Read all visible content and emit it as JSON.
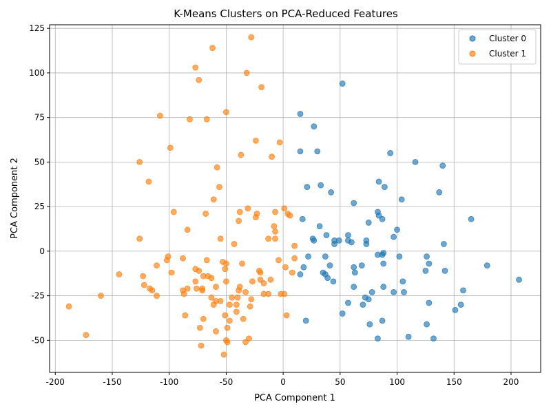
{
  "chart_data": {
    "type": "scatter",
    "title": "K-Means Clusters on PCA-Reduced Features",
    "xlabel": "PCA Component 1",
    "ylabel": "PCA Component 2",
    "xlim": [
      -205,
      226
    ],
    "ylim": [
      -68,
      127
    ],
    "xticks": [
      -200,
      -150,
      -100,
      -50,
      0,
      50,
      100,
      150,
      200
    ],
    "yticks": [
      -50,
      -25,
      0,
      25,
      50,
      75,
      100,
      125
    ],
    "grid": true,
    "legend": "top-right",
    "series": [
      {
        "name": "Cluster 0",
        "color": "#1f77b4",
        "points": [
          [
            52,
            94
          ],
          [
            15,
            77
          ],
          [
            27,
            70
          ],
          [
            15,
            56
          ],
          [
            30,
            56
          ],
          [
            94,
            55
          ],
          [
            116,
            50
          ],
          [
            140,
            48
          ],
          [
            84,
            39
          ],
          [
            89,
            36
          ],
          [
            21,
            36
          ],
          [
            33,
            37
          ],
          [
            42,
            33
          ],
          [
            137,
            33
          ],
          [
            104,
            29
          ],
          [
            62,
            27
          ],
          [
            83,
            22
          ],
          [
            84,
            20
          ],
          [
            87,
            18
          ],
          [
            165,
            18
          ],
          [
            17,
            18
          ],
          [
            75,
            16
          ],
          [
            32,
            14
          ],
          [
            100,
            12
          ],
          [
            38,
            9
          ],
          [
            57,
            9
          ],
          [
            97,
            8
          ],
          [
            26,
            7
          ],
          [
            27,
            6
          ],
          [
            45,
            6
          ],
          [
            49,
            6
          ],
          [
            73,
            6
          ],
          [
            57,
            6
          ],
          [
            60,
            5
          ],
          [
            45,
            4
          ],
          [
            73,
            4
          ],
          [
            141,
            4
          ],
          [
            88,
            -1
          ],
          [
            87,
            -2
          ],
          [
            83,
            -2
          ],
          [
            22,
            -3
          ],
          [
            37,
            -3
          ],
          [
            102,
            -3
          ],
          [
            126,
            -3
          ],
          [
            128,
            -7
          ],
          [
            88,
            -7
          ],
          [
            69,
            -8
          ],
          [
            41,
            -8
          ],
          [
            179,
            -8
          ],
          [
            62,
            -9
          ],
          [
            18,
            -9
          ],
          [
            125,
            -11
          ],
          [
            142,
            -11
          ],
          [
            63,
            -12
          ],
          [
            35,
            -12
          ],
          [
            15,
            -13
          ],
          [
            37,
            -13
          ],
          [
            39,
            -15
          ],
          [
            207,
            -16
          ],
          [
            105,
            -17
          ],
          [
            44,
            -17
          ],
          [
            62,
            -20
          ],
          [
            88,
            -20
          ],
          [
            158,
            -22
          ],
          [
            78,
            -23
          ],
          [
            97,
            -23
          ],
          [
            106,
            -23
          ],
          [
            72,
            -26
          ],
          [
            75,
            -27
          ],
          [
            128,
            -29
          ],
          [
            57,
            -29
          ],
          [
            156,
            -30
          ],
          [
            70,
            -30
          ],
          [
            151,
            -33
          ],
          [
            52,
            -35
          ],
          [
            20,
            -39
          ],
          [
            87,
            -39
          ],
          [
            76,
            -41
          ],
          [
            126,
            -41
          ],
          [
            110,
            -48
          ],
          [
            83,
            -49
          ],
          [
            132,
            -49
          ]
        ]
      },
      {
        "name": "Cluster 1",
        "color": "#ff7f0e",
        "points": [
          [
            -28,
            120
          ],
          [
            -62,
            114
          ],
          [
            -77,
            103
          ],
          [
            -32,
            100
          ],
          [
            -74,
            96
          ],
          [
            -19,
            92
          ],
          [
            -50,
            78
          ],
          [
            -108,
            76
          ],
          [
            -82,
            74
          ],
          [
            -67,
            74
          ],
          [
            -24,
            62
          ],
          [
            -3,
            61
          ],
          [
            -99,
            58
          ],
          [
            -37,
            54
          ],
          [
            -10,
            53
          ],
          [
            -126,
            50
          ],
          [
            -58,
            47
          ],
          [
            -118,
            39
          ],
          [
            -56,
            36
          ],
          [
            -61,
            29
          ],
          [
            1,
            24
          ],
          [
            -31,
            24
          ],
          [
            -96,
            22
          ],
          [
            -38,
            22
          ],
          [
            -23,
            21
          ],
          [
            -7,
            22
          ],
          [
            4,
            21
          ],
          [
            -68,
            21
          ],
          [
            6,
            20
          ],
          [
            -24,
            19
          ],
          [
            -39,
            17
          ],
          [
            -84,
            12
          ],
          [
            -8,
            14
          ],
          [
            -7,
            11
          ],
          [
            -126,
            7
          ],
          [
            -55,
            7
          ],
          [
            -7,
            7
          ],
          [
            -13,
            7
          ],
          [
            -43,
            4
          ],
          [
            10,
            3
          ],
          [
            -101,
            -3
          ],
          [
            -102,
            -5
          ],
          [
            -88,
            -4
          ],
          [
            -67,
            -5
          ],
          [
            -4,
            -5
          ],
          [
            10,
            -4
          ],
          [
            -53,
            -6
          ],
          [
            -36,
            -7
          ],
          [
            -50,
            -7
          ],
          [
            -111,
            -8
          ],
          [
            -77,
            -10
          ],
          [
            -51,
            -10
          ],
          [
            2,
            -9
          ],
          [
            -74,
            -11
          ],
          [
            -98,
            -12
          ],
          [
            -21,
            -11
          ],
          [
            -20,
            -12
          ],
          [
            8,
            -12
          ],
          [
            -144,
            -13
          ],
          [
            -70,
            -14
          ],
          [
            -66,
            -14
          ],
          [
            -123,
            -14
          ],
          [
            -63,
            -15
          ],
          [
            -11,
            -16
          ],
          [
            -20,
            -16
          ],
          [
            -27,
            -17
          ],
          [
            -50,
            -17
          ],
          [
            -77,
            -17
          ],
          [
            -17,
            -18
          ],
          [
            -122,
            -19
          ],
          [
            -59,
            -20
          ],
          [
            -38,
            -20
          ],
          [
            -84,
            -21
          ],
          [
            -76,
            -21
          ],
          [
            -117,
            -21
          ],
          [
            -115,
            -22
          ],
          [
            -71,
            -21
          ],
          [
            -88,
            -22
          ],
          [
            -39,
            -22
          ],
          [
            -71,
            -22
          ],
          [
            -33,
            -23
          ],
          [
            -87,
            -24
          ],
          [
            -13,
            -24
          ],
          [
            -17,
            -24
          ],
          [
            -2,
            -24
          ],
          [
            1,
            -24
          ],
          [
            -111,
            -25
          ],
          [
            -160,
            -25
          ],
          [
            -45,
            -26
          ],
          [
            -40,
            -26
          ],
          [
            -63,
            -26
          ],
          [
            -28,
            -27
          ],
          [
            -55,
            -28
          ],
          [
            -59,
            -28
          ],
          [
            -61,
            -30
          ],
          [
            -47,
            -30
          ],
          [
            -41,
            -30
          ],
          [
            -29,
            -31
          ],
          [
            -188,
            -31
          ],
          [
            -41,
            -34
          ],
          [
            -86,
            -36
          ],
          [
            -51,
            -36
          ],
          [
            3,
            -36
          ],
          [
            -35,
            -38
          ],
          [
            -70,
            -38
          ],
          [
            -47,
            -39
          ],
          [
            -73,
            -43
          ],
          [
            -49,
            -43
          ],
          [
            -59,
            -45
          ],
          [
            -173,
            -47
          ],
          [
            -30,
            -49
          ],
          [
            -50,
            -50
          ],
          [
            -33,
            -51
          ],
          [
            -49,
            -51
          ],
          [
            -72,
            -53
          ],
          [
            -52,
            -58
          ]
        ]
      }
    ]
  }
}
